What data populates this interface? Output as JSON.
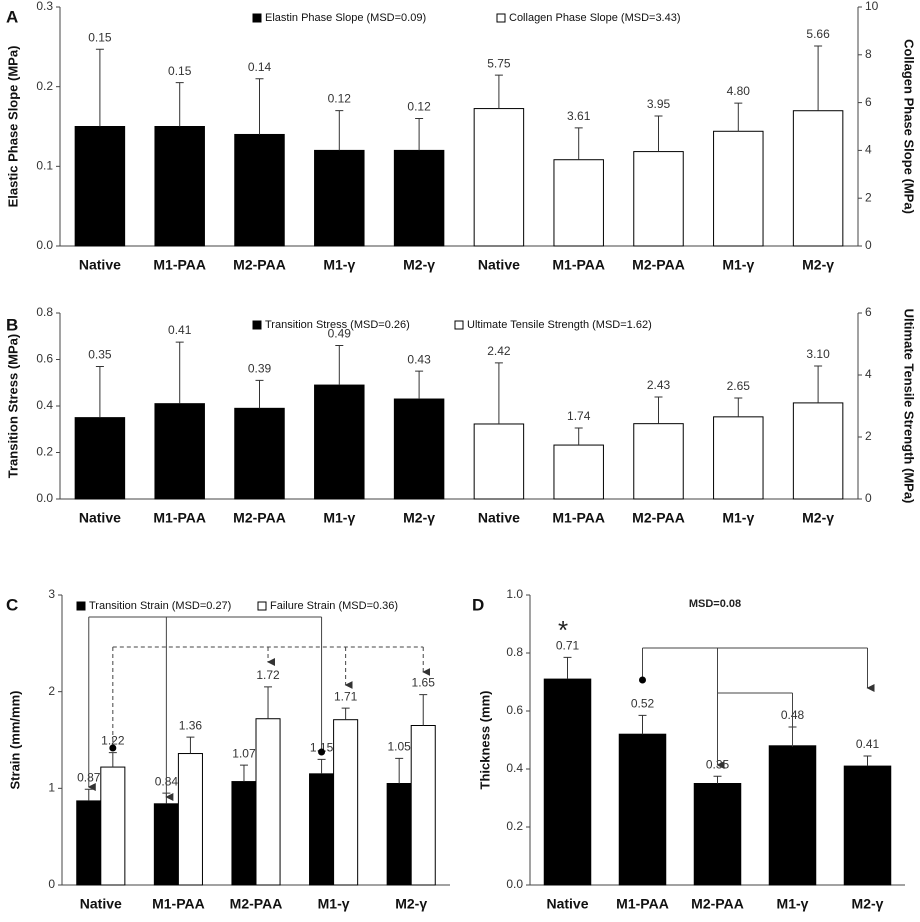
{
  "chart_data": [
    {
      "type": "bar",
      "label": "A",
      "categories": [
        "Native",
        "M1-PAA",
        "M2-PAA",
        "M1-γ",
        "M2-γ",
        "Native",
        "M1-PAA",
        "M2-PAA",
        "M1-γ",
        "M2-γ"
      ],
      "series": [
        {
          "name": "Elastin Phase Slope (MSD=0.09)",
          "color": "#000000",
          "values": [
            0.15,
            0.15,
            0.14,
            0.12,
            0.12,
            null,
            null,
            null,
            null,
            null
          ],
          "errors": [
            0.097,
            0.055,
            0.07,
            0.05,
            0.04,
            null,
            null,
            null,
            null,
            null
          ]
        },
        {
          "name": "Collagen Phase Slope (MSD=3.43)",
          "color": "#ffffff",
          "axis": "y2",
          "values": [
            null,
            null,
            null,
            null,
            null,
            5.75,
            3.61,
            3.95,
            4.8,
            5.66
          ],
          "value_labels": [
            null,
            null,
            null,
            null,
            null,
            "5.75",
            "3.61",
            "3.95",
            "4.80",
            "5.66"
          ],
          "errors": [
            null,
            null,
            null,
            null,
            null,
            1.4,
            1.33,
            1.49,
            1.18,
            2.71
          ]
        }
      ],
      "ylabel": "Elastic Phase Slope (MPa)",
      "y2label": "Collagen Phase Slope (MPa)",
      "ylim": [
        0,
        0.3
      ],
      "yticks": [
        {
          "value": 0,
          "label": "0.0"
        },
        0.1,
        0.2,
        0.3
      ],
      "y2lim": [
        0,
        10
      ],
      "y2ticks": [
        0,
        2,
        4,
        6,
        8,
        10
      ]
    },
    {
      "type": "bar",
      "label": "B",
      "categories": [
        "Native",
        "M1-PAA",
        "M2-PAA",
        "M1-γ",
        "M2-γ",
        "Native",
        "M1-PAA",
        "M2-PAA",
        "M1-γ",
        "M2-γ"
      ],
      "series": [
        {
          "name": "Transition Stress (MSD=0.26)",
          "color": "#000000",
          "values": [
            0.35,
            0.41,
            0.39,
            0.49,
            0.43,
            null,
            null,
            null,
            null,
            null
          ],
          "errors": [
            0.22,
            0.265,
            0.12,
            0.17,
            0.12,
            null,
            null,
            null,
            null,
            null
          ]
        },
        {
          "name": "Ultimate Tensile Strength (MSD=1.62)",
          "color": "#ffffff",
          "axis": "y2",
          "values": [
            null,
            null,
            null,
            null,
            null,
            2.42,
            1.74,
            2.43,
            2.65,
            3.1
          ],
          "value_labels": [
            null,
            null,
            null,
            null,
            null,
            "2.42",
            "1.74",
            "2.43",
            "2.65",
            "3.10"
          ],
          "errors": [
            null,
            null,
            null,
            null,
            null,
            1.97,
            0.55,
            0.86,
            0.61,
            1.19
          ]
        }
      ],
      "ylabel": "Transition Stress (MPa)",
      "y2label": "Ultimate Tensile Strength (MPa)",
      "ylim": [
        0,
        0.8
      ],
      "yticks": [
        {
          "value": 0,
          "label": "0.0"
        },
        0.2,
        0.4,
        0.6,
        0.8
      ],
      "y2lim": [
        0,
        6
      ],
      "y2ticks": [
        0,
        2,
        4,
        6
      ]
    },
    {
      "type": "bar",
      "label": "C",
      "categories": [
        "Native",
        "M1-PAA",
        "M2-PAA",
        "M1-γ",
        "M2-γ"
      ],
      "series": [
        {
          "name": "Transition Strain (MSD=0.27)",
          "color": "#000000",
          "values": [
            0.87,
            0.84,
            1.07,
            1.15,
            1.05
          ],
          "errors": [
            0.12,
            0.11,
            0.17,
            0.15,
            0.26
          ]
        },
        {
          "name": "Failure Strain (MSD=0.36)",
          "color": "#ffffff",
          "values": [
            1.22,
            1.36,
            1.72,
            1.71,
            1.65
          ],
          "errors": [
            0.15,
            0.17,
            0.33,
            0.12,
            0.32
          ]
        }
      ],
      "ylabel": "Strain (mm/mm)",
      "ylim": [
        0,
        3
      ],
      "yticks": [
        0,
        1,
        2,
        3
      ]
    },
    {
      "type": "bar",
      "label": "D",
      "categories": [
        "Native",
        "M1-PAA",
        "M2-PAA",
        "M1-γ",
        "M2-γ"
      ],
      "series": [
        {
          "color": "#000000",
          "values": [
            0.71,
            0.52,
            0.35,
            0.48,
            0.41
          ],
          "errors": [
            0.075,
            0.065,
            0.025,
            0.065,
            0.035
          ]
        }
      ],
      "annotations": [
        "*",
        "MSD=0.08"
      ],
      "ylabel": "Thickness (mm)",
      "ylim": [
        0,
        1
      ],
      "yticks": [
        {
          "value": 0,
          "label": "0.0"
        },
        0.2,
        0.4,
        0.6,
        0.8,
        {
          "value": 1,
          "label": "1.0"
        }
      ]
    }
  ]
}
